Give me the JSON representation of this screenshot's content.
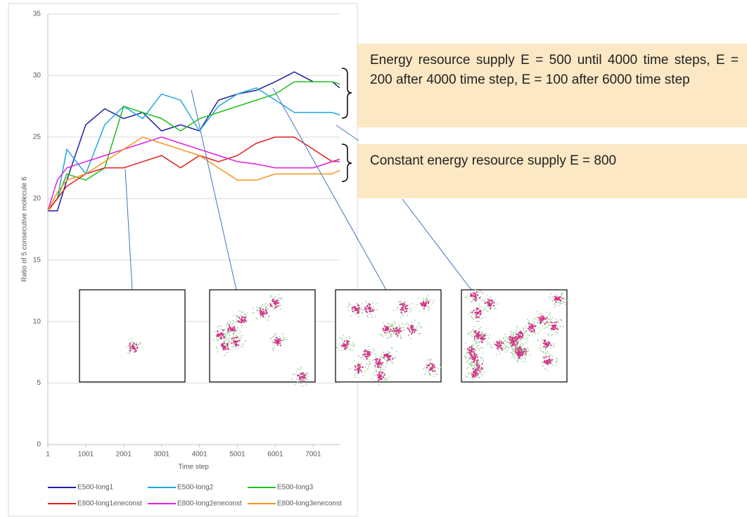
{
  "chart_data": {
    "type": "line",
    "y_label": "Ratio of 5 consecutive molecule 6",
    "x_label": "Time step",
    "x": [
      1,
      251,
      501,
      1001,
      1501,
      2001,
      2501,
      3001,
      3501,
      4001,
      4501,
      5001,
      5501,
      6001,
      6501,
      7001,
      7501,
      7700
    ],
    "series": [
      {
        "name": "E500-long1",
        "color": "#1f1fa0",
        "values": [
          19,
          19,
          21.5,
          26,
          27.3,
          26.5,
          27,
          25.5,
          26,
          25.5,
          28,
          28.5,
          28.8,
          29.5,
          30.3,
          29.5,
          29.5,
          29
        ]
      },
      {
        "name": "E500-long2",
        "color": "#1fa8e0",
        "values": [
          19,
          20,
          24,
          22,
          26,
          27.5,
          26.5,
          28.5,
          28,
          25.5,
          27.5,
          28.5,
          29,
          28,
          27,
          27,
          27,
          26.8
        ]
      },
      {
        "name": "E500-long3",
        "color": "#1fc01f",
        "values": [
          19,
          20,
          22,
          21.5,
          22.5,
          27.5,
          27,
          26.5,
          25.5,
          26.5,
          27,
          27.5,
          28,
          28.5,
          29.5,
          29.5,
          29.5,
          29.3
        ]
      },
      {
        "name": "E800-long1eneconst",
        "color": "#e01f1f",
        "values": [
          19,
          20,
          21,
          22,
          22.5,
          22.5,
          23,
          23.5,
          22.5,
          23.5,
          23,
          23.5,
          24.5,
          25,
          25,
          24,
          23,
          23.2
        ]
      },
      {
        "name": "E800-long2eneconst",
        "color": "#e01fe0",
        "values": [
          19,
          21.5,
          22.5,
          23,
          23.5,
          24,
          24.5,
          25,
          24.5,
          24,
          23.5,
          23,
          22.8,
          22.5,
          22.5,
          22.5,
          23,
          23
        ]
      },
      {
        "name": "E800-long3eneconst",
        "color": "#f7941d",
        "values": [
          19,
          20.5,
          21.5,
          22,
          23,
          24,
          25,
          24.5,
          24,
          23.5,
          22.5,
          21.5,
          21.5,
          22,
          22,
          22,
          22,
          22.3
        ]
      }
    ],
    "xlim": [
      1,
      7700
    ],
    "xticks": [
      1,
      1001,
      2001,
      3001,
      4001,
      5001,
      6001,
      7001
    ],
    "ylim": [
      0,
      35
    ],
    "yticks": [
      0,
      5,
      10,
      15,
      20,
      25,
      30,
      35
    ],
    "grid": true,
    "annotations": [
      "Energy resource supply E = 500 until 4000 time steps, E = 200 after 4000 time step, E = 100 after 6000 time step",
      "Constant energy resource supply E = 800"
    ]
  }
}
